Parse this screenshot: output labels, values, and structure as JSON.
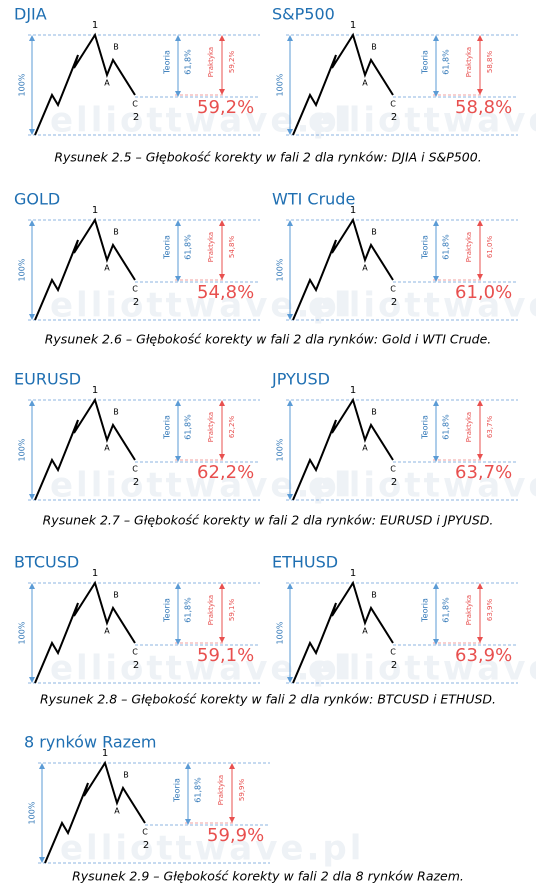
{
  "labels": {
    "wave": [
      "1",
      "A",
      "B",
      "C",
      "2"
    ],
    "full": "100%",
    "theory": "Teoria",
    "theory_value": "61,8%",
    "practice": "Praktyka"
  },
  "watermark": "elliottwave.pl",
  "figures": [
    {
      "panels": [
        {
          "name": "DJIA",
          "practice_value": "59,2%"
        },
        {
          "name": "S&P500",
          "practice_value": "58,8%"
        }
      ],
      "caption": "Rysunek 2.5 – Głębokość korekty w fali 2 dla rynków: DJIA i S&P500."
    },
    {
      "panels": [
        {
          "name": "GOLD",
          "practice_value": "54,8%"
        },
        {
          "name": "WTI Crude",
          "practice_value": "61,0%"
        }
      ],
      "caption": "Rysunek 2.6 – Głębokość korekty w fali 2 dla rynków: Gold i WTI Crude."
    },
    {
      "panels": [
        {
          "name": "EURUSD",
          "practice_value": "62,2%"
        },
        {
          "name": "JPYUSD",
          "practice_value": "63,7%"
        }
      ],
      "caption": "Rysunek 2.7 – Głębokość korekty w fali 2 dla rynków: EURUSD i JPYUSD."
    },
    {
      "panels": [
        {
          "name": "BTCUSD",
          "practice_value": "59,1%"
        },
        {
          "name": "ETHUSD",
          "practice_value": "63,9%"
        }
      ],
      "caption": "Rysunek 2.8 – Głębokość korekty w fali 2 dla rynków: BTCUSD i ETHUSD."
    },
    {
      "panels": [
        {
          "name": "8 rynków Razem",
          "practice_value": "59,9%"
        }
      ],
      "caption": "Rysunek 2.9 – Głębokość korekty w fali 2 dla 8 rynków Razem."
    }
  ]
}
